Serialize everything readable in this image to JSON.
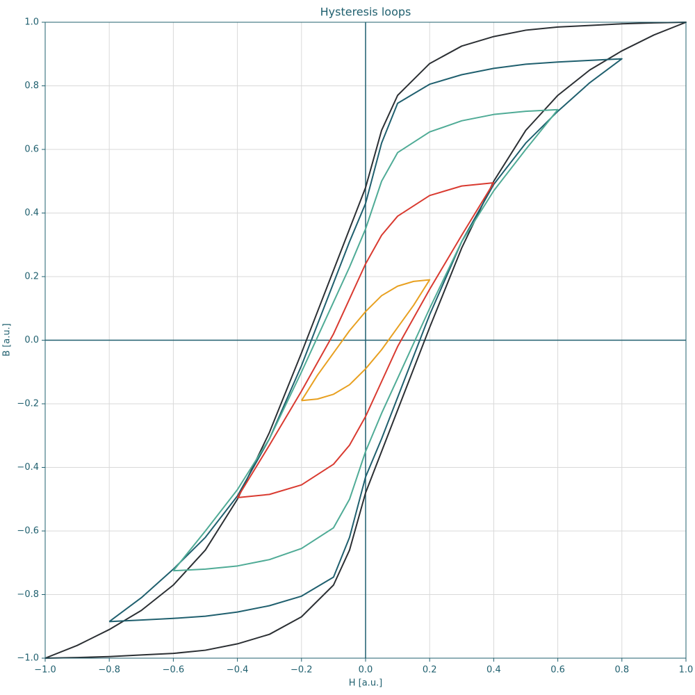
{
  "chart_data": {
    "type": "line",
    "title": "Hysteresis loops",
    "x_label": "H [a.u.]",
    "y_label": "B [a.u.]",
    "xlim": [
      -1,
      1
    ],
    "ylim": [
      -1,
      1
    ],
    "grid": true,
    "xticks": [
      {
        "value": -1,
        "label": "−1.0"
      },
      {
        "value": -0.8,
        "label": "−0.8"
      },
      {
        "value": -0.6,
        "label": "−0.6"
      },
      {
        "value": -0.4,
        "label": "−0.4"
      },
      {
        "value": -0.2,
        "label": "−0.2"
      },
      {
        "value": 0,
        "label": "0.0"
      },
      {
        "value": 0.2,
        "label": "0.2"
      },
      {
        "value": 0.4,
        "label": "0.4"
      },
      {
        "value": 0.6,
        "label": "0.6"
      },
      {
        "value": 0.8,
        "label": "0.8"
      },
      {
        "value": 1,
        "label": "1.0"
      }
    ],
    "yticks": [
      {
        "value": -1,
        "label": "−1.0"
      },
      {
        "value": -0.8,
        "label": "−0.8"
      },
      {
        "value": -0.6,
        "label": "−0.6"
      },
      {
        "value": -0.4,
        "label": "−0.4"
      },
      {
        "value": -0.2,
        "label": "−0.2"
      },
      {
        "value": 0,
        "label": "0.0"
      },
      {
        "value": 0.2,
        "label": "0.2"
      },
      {
        "value": 0.4,
        "label": "0.4"
      },
      {
        "value": 0.6,
        "label": "0.6"
      },
      {
        "value": 0.8,
        "label": "0.8"
      },
      {
        "value": 1,
        "label": "1.0"
      }
    ],
    "series": [
      {
        "color": "#2b2f33",
        "x": [
          -1,
          -0.9,
          -0.8,
          -0.7,
          -0.6,
          -0.5,
          -0.4,
          -0.3,
          -0.2,
          -0.1,
          -0.05,
          0,
          0.05,
          0.1,
          0.2,
          0.3,
          0.4,
          0.5,
          0.6,
          0.7,
          0.8,
          0.9,
          1,
          0.9,
          0.8,
          0.7,
          0.6,
          0.5,
          0.4,
          0.3,
          0.2,
          0.1,
          0.05,
          0,
          -0.05,
          -0.1,
          -0.2,
          -0.3,
          -0.4,
          -0.5,
          -0.6,
          -0.7,
          -0.8,
          -0.9,
          -1
        ],
        "values": [
          -1,
          -0.998,
          -0.995,
          -0.99,
          -0.985,
          -0.975,
          -0.955,
          -0.925,
          -0.87,
          -0.77,
          -0.66,
          -0.48,
          -0.35,
          -0.22,
          0.04,
          0.29,
          0.5,
          0.66,
          0.77,
          0.85,
          0.91,
          0.96,
          1,
          0.998,
          0.995,
          0.99,
          0.985,
          0.975,
          0.955,
          0.925,
          0.87,
          0.77,
          0.66,
          0.48,
          0.35,
          0.22,
          -0.04,
          -0.29,
          -0.5,
          -0.66,
          -0.77,
          -0.85,
          -0.91,
          -0.96,
          -1
        ]
      },
      {
        "color": "#1f5f6e",
        "x": [
          -0.8,
          -0.7,
          -0.6,
          -0.5,
          -0.4,
          -0.3,
          -0.2,
          -0.1,
          -0.05,
          0,
          0.05,
          0.1,
          0.2,
          0.3,
          0.4,
          0.5,
          0.6,
          0.7,
          0.8,
          0.7,
          0.6,
          0.5,
          0.4,
          0.3,
          0.2,
          0.1,
          0.05,
          0,
          -0.05,
          -0.1,
          -0.2,
          -0.3,
          -0.4,
          -0.5,
          -0.6,
          -0.7,
          -0.8
        ],
        "values": [
          -0.885,
          -0.88,
          -0.875,
          -0.868,
          -0.855,
          -0.835,
          -0.805,
          -0.745,
          -0.62,
          -0.43,
          -0.31,
          -0.18,
          0.08,
          0.31,
          0.49,
          0.62,
          0.72,
          0.81,
          0.885,
          0.88,
          0.875,
          0.868,
          0.855,
          0.835,
          0.805,
          0.745,
          0.62,
          0.43,
          0.31,
          0.18,
          -0.08,
          -0.31,
          -0.49,
          -0.62,
          -0.72,
          -0.81,
          -0.885
        ]
      },
      {
        "color": "#4fab96",
        "x": [
          -0.6,
          -0.5,
          -0.4,
          -0.3,
          -0.2,
          -0.1,
          -0.05,
          0,
          0.05,
          0.1,
          0.2,
          0.3,
          0.4,
          0.5,
          0.6,
          0.5,
          0.4,
          0.3,
          0.2,
          0.1,
          0.05,
          0,
          -0.05,
          -0.1,
          -0.2,
          -0.3,
          -0.4,
          -0.5,
          -0.6
        ],
        "values": [
          -0.725,
          -0.72,
          -0.71,
          -0.69,
          -0.655,
          -0.59,
          -0.5,
          -0.35,
          -0.23,
          -0.12,
          0.1,
          0.31,
          0.47,
          0.6,
          0.725,
          0.72,
          0.71,
          0.69,
          0.655,
          0.59,
          0.5,
          0.35,
          0.23,
          0.12,
          -0.1,
          -0.31,
          -0.47,
          -0.6,
          -0.725
        ]
      },
      {
        "color": "#d93a30",
        "x": [
          -0.4,
          -0.3,
          -0.2,
          -0.1,
          -0.05,
          0,
          0.05,
          0.1,
          0.2,
          0.3,
          0.4,
          0.3,
          0.2,
          0.1,
          0.05,
          0,
          -0.05,
          -0.1,
          -0.2,
          -0.3,
          -0.4
        ],
        "values": [
          -0.495,
          -0.485,
          -0.455,
          -0.39,
          -0.33,
          -0.24,
          -0.13,
          -0.02,
          0.16,
          0.33,
          0.495,
          0.485,
          0.455,
          0.39,
          0.33,
          0.24,
          0.13,
          0.02,
          -0.16,
          -0.33,
          -0.495
        ]
      },
      {
        "color": "#e8a020",
        "x": [
          -0.2,
          -0.15,
          -0.1,
          -0.05,
          0,
          0.05,
          0.1,
          0.15,
          0.2,
          0.15,
          0.1,
          0.05,
          0,
          -0.05,
          -0.1,
          -0.15,
          -0.2
        ],
        "values": [
          -0.19,
          -0.185,
          -0.17,
          -0.14,
          -0.09,
          -0.03,
          0.04,
          0.11,
          0.19,
          0.185,
          0.17,
          0.14,
          0.09,
          0.03,
          -0.04,
          -0.11,
          -0.19
        ]
      }
    ]
  }
}
